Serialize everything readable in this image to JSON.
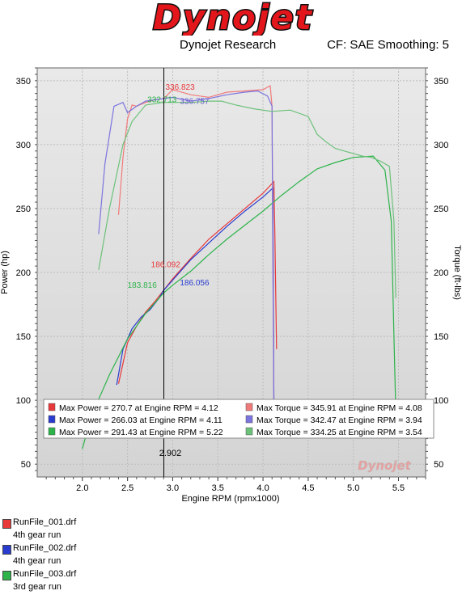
{
  "header": {
    "logo_text": "Dynojet",
    "subtitle": "Dynojet Research",
    "cf_info": "CF: SAE Smoothing: 5"
  },
  "files": [
    {
      "name": "RunFile_001.drf",
      "desc": "4th gear run",
      "color": "#e8383a"
    },
    {
      "name": "RunFile_002.drf",
      "desc": "4th gear run",
      "color": "#2a3ccf"
    },
    {
      "name": "RunFile_003.drf",
      "desc": "3rd gear run",
      "color": "#2db34a"
    }
  ],
  "chart_data": {
    "type": "line",
    "xlabel": "Engine RPM (rpmx1000)",
    "ylabel_left": "Power (hp)",
    "ylabel_right": "Torque (ft-lbs)",
    "xlim": [
      1.5,
      5.8
    ],
    "ylim": [
      40,
      360
    ],
    "x_ticks": [
      2.0,
      2.5,
      3.0,
      3.5,
      4.0,
      4.5,
      5.0,
      5.5
    ],
    "y_ticks": [
      50,
      100,
      150,
      200,
      250,
      300,
      350
    ],
    "grid": true,
    "watermark": "Dynojet",
    "cursor": {
      "x": 2.902,
      "label": "2.902"
    },
    "annotations": [
      {
        "text": "336.823",
        "x": 2.92,
        "y": 343,
        "color": "#e8383a"
      },
      {
        "text": "332.713",
        "x": 2.72,
        "y": 333,
        "color": "#2db34a"
      },
      {
        "text": "336.757",
        "x": 3.08,
        "y": 332,
        "color": "#6a5acd"
      },
      {
        "text": "186.092",
        "x": 2.76,
        "y": 204,
        "color": "#e8383a"
      },
      {
        "text": "183.816",
        "x": 2.5,
        "y": 188,
        "color": "#2db34a"
      },
      {
        "text": "186.056",
        "x": 3.08,
        "y": 190,
        "color": "#2a3ccf"
      }
    ],
    "legend": [
      {
        "text": "Max Power = 270.7 at Engine RPM = 4.12",
        "color": "#e8383a"
      },
      {
        "text": "Max Torque = 345.91 at Engine RPM = 4.08",
        "color": "#f07a7a"
      },
      {
        "text": "Max Power = 266.03 at Engine RPM = 4.11",
        "color": "#2a3ccf"
      },
      {
        "text": "Max Torque = 342.47 at Engine RPM = 3.94",
        "color": "#7b74de"
      },
      {
        "text": "Max Power = 291.43 at Engine RPM = 5.22",
        "color": "#2db34a"
      },
      {
        "text": "Max Torque = 334.25 at Engine RPM = 3.54",
        "color": "#6cc17a"
      }
    ],
    "series": [
      {
        "color": "#e8383a",
        "x": [
          2.4,
          2.5,
          2.6,
          2.7,
          2.8,
          2.9,
          3.0,
          3.2,
          3.4,
          3.6,
          3.8,
          4.0,
          4.12,
          4.13,
          4.15
        ],
        "y": [
          113,
          145,
          158,
          169,
          177,
          186,
          195,
          211,
          226,
          238,
          250,
          262,
          271,
          235,
          140
        ]
      },
      {
        "color": "#2a3ccf",
        "x": [
          2.38,
          2.45,
          2.55,
          2.65,
          2.75,
          2.85,
          2.9,
          3.0,
          3.2,
          3.4,
          3.6,
          3.8,
          4.0,
          4.11,
          4.12
        ],
        "y": [
          112,
          140,
          156,
          165,
          171,
          180,
          186,
          194,
          210,
          223,
          236,
          248,
          259,
          266,
          100
        ]
      },
      {
        "color": "#2db34a",
        "x": [
          2.0,
          2.1,
          2.3,
          2.5,
          2.7,
          2.9,
          3.0,
          3.2,
          3.4,
          3.6,
          3.8,
          4.0,
          4.2,
          4.4,
          4.6,
          4.8,
          5.0,
          5.22,
          5.35,
          5.42,
          5.45,
          5.47
        ],
        "y": [
          62,
          88,
          120,
          148,
          168,
          184,
          190,
          201,
          214,
          226,
          237,
          248,
          260,
          271,
          281,
          286,
          290,
          291,
          280,
          240,
          150,
          90
        ]
      },
      {
        "color": "#f07a7a",
        "x": [
          2.4,
          2.45,
          2.5,
          2.55,
          2.6,
          2.7,
          2.8,
          2.9,
          3.0,
          3.2,
          3.4,
          3.6,
          3.8,
          4.0,
          4.08,
          4.1,
          4.12
        ],
        "y": [
          245,
          290,
          320,
          331,
          330,
          333,
          335,
          336,
          343,
          339,
          337,
          341,
          342,
          343,
          346,
          330,
          100
        ]
      },
      {
        "color": "#7b74de",
        "x": [
          2.18,
          2.25,
          2.35,
          2.45,
          2.5,
          2.6,
          2.7,
          2.8,
          2.9,
          3.0,
          3.2,
          3.4,
          3.6,
          3.8,
          3.94,
          4.05,
          4.1,
          4.11,
          4.12
        ],
        "y": [
          230,
          285,
          330,
          333,
          325,
          330,
          334,
          335,
          336,
          337,
          334,
          336,
          339,
          341,
          342,
          338,
          330,
          200,
          100
        ]
      },
      {
        "color": "#6cc17a",
        "x": [
          2.18,
          2.3,
          2.45,
          2.55,
          2.7,
          2.9,
          3.0,
          3.2,
          3.4,
          3.54,
          3.7,
          3.9,
          4.1,
          4.3,
          4.5,
          4.6,
          4.7,
          4.8,
          4.9,
          5.0,
          5.1,
          5.2,
          5.3,
          5.4,
          5.45,
          5.47
        ],
        "y": [
          202,
          250,
          300,
          318,
          331,
          333,
          333,
          333,
          334,
          334,
          331,
          328,
          326,
          327,
          322,
          308,
          302,
          297,
          295,
          293,
          291,
          290,
          287,
          283,
          240,
          180
        ]
      }
    ]
  }
}
